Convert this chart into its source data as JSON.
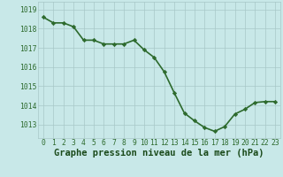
{
  "x": [
    0,
    1,
    2,
    3,
    4,
    5,
    6,
    7,
    8,
    9,
    10,
    11,
    12,
    13,
    14,
    15,
    16,
    17,
    18,
    19,
    20,
    21,
    22,
    23
  ],
  "y": [
    1018.6,
    1018.3,
    1018.3,
    1018.1,
    1017.4,
    1017.4,
    1017.2,
    1017.2,
    1017.2,
    1017.4,
    1016.9,
    1016.5,
    1015.75,
    1014.65,
    1013.6,
    1013.2,
    1012.85,
    1012.65,
    1012.9,
    1013.55,
    1013.8,
    1014.15,
    1014.2,
    1014.2
  ],
  "line_color": "#2d6a2d",
  "marker": "D",
  "marker_size": 2.2,
  "bg_color": "#c8e8e8",
  "grid_color": "#a8c8c8",
  "xlabel": "Graphe pression niveau de la mer (hPa)",
  "xlabel_color": "#1a4a1a",
  "xlabel_fontsize": 7.5,
  "yticks": [
    1013,
    1014,
    1015,
    1016,
    1017,
    1018,
    1019
  ],
  "xticks": [
    0,
    1,
    2,
    3,
    4,
    5,
    6,
    7,
    8,
    9,
    10,
    11,
    12,
    13,
    14,
    15,
    16,
    17,
    18,
    19,
    20,
    21,
    22,
    23
  ],
  "ylim": [
    1012.3,
    1019.4
  ],
  "xlim": [
    -0.5,
    23.5
  ],
  "tick_color": "#2d6a2d",
  "tick_fontsize": 5.8,
  "line_width": 1.2
}
